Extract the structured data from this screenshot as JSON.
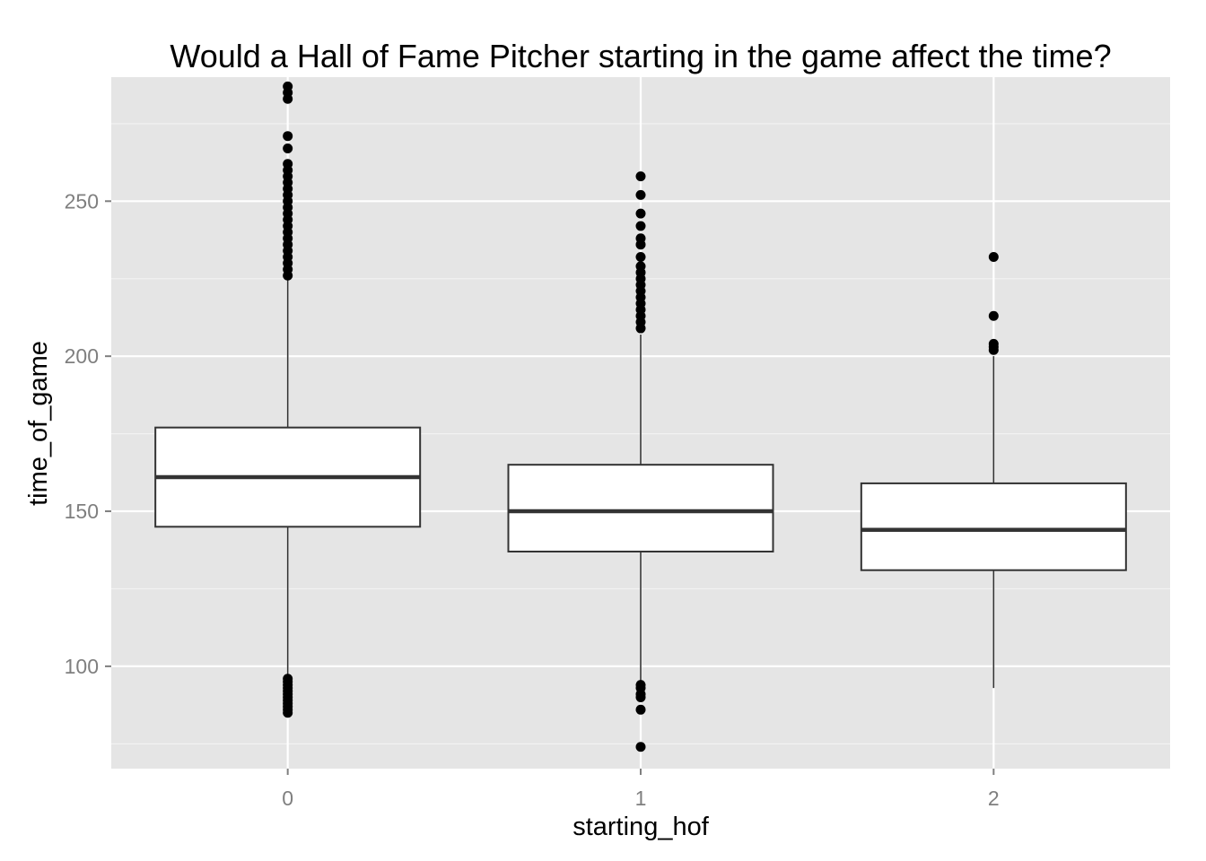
{
  "chart_data": {
    "type": "box",
    "title": "Would a Hall of Fame Pitcher starting in the game affect the time?",
    "xlabel": "starting_hof",
    "ylabel": "time_of_game",
    "categories": [
      "0",
      "1",
      "2"
    ],
    "ylim": [
      67,
      290
    ],
    "yticks": [
      100,
      150,
      200,
      250
    ],
    "grid": true,
    "colors": {
      "panel_background": "#e5e5e5",
      "grid_major": "#ffffff",
      "grid_minor": "#f2f2f2",
      "box_fill": "#ffffff",
      "box_outline": "#333333",
      "median_line": "#333333",
      "outlier_point": "#000000",
      "tick_label": "#7f7f7f"
    },
    "boxes": [
      {
        "category": "0",
        "lower_whisker": 97,
        "q1": 145,
        "median": 161,
        "q3": 177,
        "upper_whisker": 225,
        "outliers": [
          85,
          86,
          87,
          88,
          89,
          90,
          91,
          92,
          93,
          94,
          95,
          96,
          226,
          228,
          230,
          232,
          234,
          236,
          238,
          240,
          242,
          244,
          246,
          248,
          250,
          252,
          254,
          256,
          258,
          260,
          262,
          267,
          271,
          283,
          285,
          287
        ]
      },
      {
        "category": "1",
        "lower_whisker": 95,
        "q1": 137,
        "median": 150,
        "q3": 165,
        "upper_whisker": 207,
        "outliers": [
          74,
          86,
          90,
          91,
          93,
          94,
          209,
          211,
          213,
          215,
          217,
          219,
          221,
          223,
          225,
          227,
          229,
          232,
          236,
          238,
          242,
          246,
          252,
          258
        ]
      },
      {
        "category": "2",
        "lower_whisker": 93,
        "q1": 131,
        "median": 144,
        "q3": 159,
        "upper_whisker": 200,
        "outliers": [
          202,
          203,
          204,
          213,
          232
        ]
      }
    ]
  }
}
